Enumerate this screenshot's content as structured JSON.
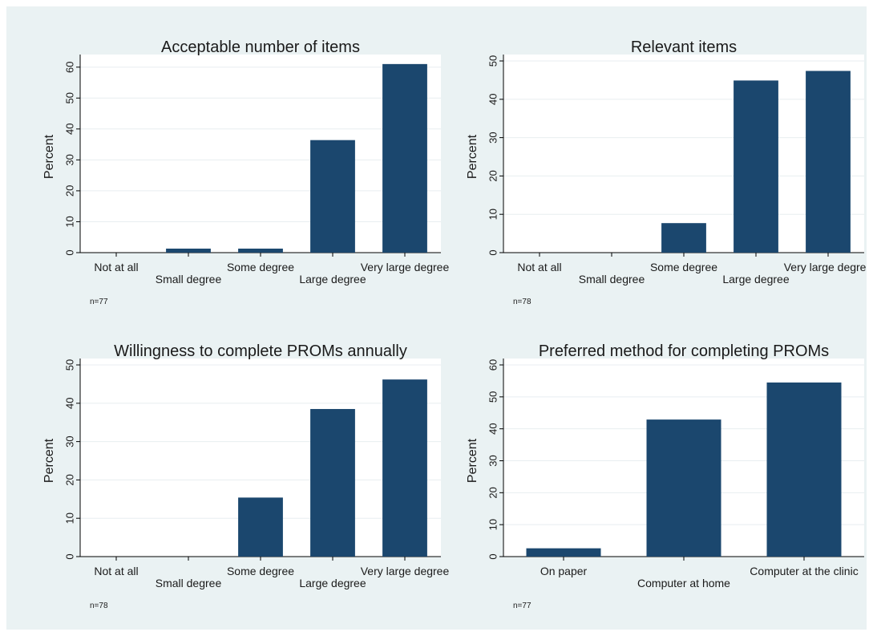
{
  "colors": {
    "bar": "#1b476e",
    "background": "#eaf2f3",
    "plot_background": "#ffffff",
    "grid": "#e8eef0",
    "axis": "#000000",
    "text": "#1a1a1a"
  },
  "chart_data": [
    {
      "type": "bar",
      "title": "Acceptable number of items",
      "ylabel": "Percent",
      "xlabel": "",
      "categories": [
        "Not at all",
        "Small degree",
        "Some degree",
        "Large degree",
        "Very large degree"
      ],
      "values": [
        0,
        1.3,
        1.3,
        36.4,
        61.0
      ],
      "ylim": [
        0,
        62
      ],
      "yticks": [
        0,
        10,
        20,
        30,
        40,
        50,
        60
      ],
      "note": "n=77",
      "grid": true
    },
    {
      "type": "bar",
      "title": "Relevant items",
      "ylabel": "Percent",
      "xlabel": "",
      "categories": [
        "Not at all",
        "Small degree",
        "Some degree",
        "Large degree",
        "Very large degree"
      ],
      "values": [
        0,
        0,
        7.7,
        44.9,
        47.4
      ],
      "ylim": [
        0,
        50
      ],
      "yticks": [
        0,
        10,
        20,
        30,
        40,
        50
      ],
      "note": "n=78",
      "grid": true
    },
    {
      "type": "bar",
      "title": "Willingness to complete PROMs annually",
      "ylabel": "Percent",
      "xlabel": "",
      "categories": [
        "Not at all",
        "Small degree",
        "Some degree",
        "Large degree",
        "Very large degree"
      ],
      "values": [
        0,
        0,
        15.4,
        38.5,
        46.2
      ],
      "ylim": [
        0,
        50
      ],
      "yticks": [
        0,
        10,
        20,
        30,
        40,
        50
      ],
      "note": "n=78",
      "grid": true
    },
    {
      "type": "bar",
      "title": "Preferred method for completing PROMs",
      "ylabel": "Percent",
      "xlabel": "",
      "categories": [
        "On paper",
        "Computer at home",
        "Computer at the clinic"
      ],
      "values": [
        2.6,
        42.9,
        54.5
      ],
      "ylim": [
        0,
        60
      ],
      "yticks": [
        0,
        10,
        20,
        30,
        40,
        50,
        60
      ],
      "note": "n=77",
      "grid": true
    }
  ]
}
